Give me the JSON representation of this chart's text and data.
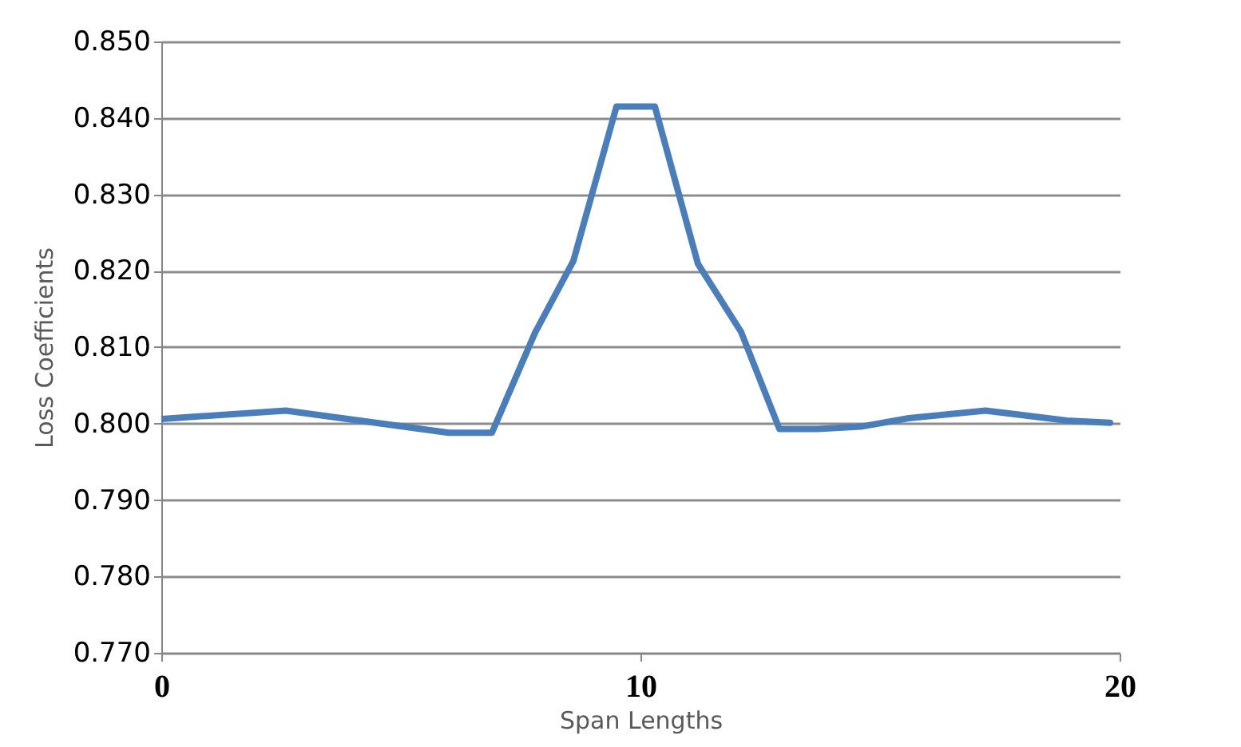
{
  "chart_data": {
    "type": "line",
    "xlabel": "Span Lengths",
    "ylabel": "Loss Coefficients",
    "x": [
      0,
      2.6,
      6.0,
      6.9,
      7.8,
      8.6,
      9.5,
      10.3,
      11.2,
      12.1,
      12.9,
      13.7,
      14.6,
      15.6,
      17.2,
      18.9,
      19.8
    ],
    "series": [
      {
        "color": "#4a7ebb",
        "values": [
          0.8006,
          0.8017,
          0.7988,
          0.7988,
          0.8119,
          0.8213,
          0.8415,
          0.8415,
          0.8209,
          0.812,
          0.7993,
          0.7993,
          0.7996,
          0.8007,
          0.8017,
          0.8004,
          0.8001
        ]
      }
    ],
    "xlim": [
      0,
      20
    ],
    "xticks": [
      0,
      10,
      20
    ],
    "ylim": [
      0.77,
      0.85
    ],
    "yticks": [
      {
        "value": 0.77,
        "label": "0.770"
      },
      {
        "value": 0.78,
        "label": "0.780"
      },
      {
        "value": 0.79,
        "label": "0.790"
      },
      {
        "value": 0.8,
        "label": "0.800"
      },
      {
        "value": 0.81,
        "label": "0.810"
      },
      {
        "value": 0.82,
        "label": "0.820"
      },
      {
        "value": 0.83,
        "label": "0.830"
      },
      {
        "value": 0.84,
        "label": "0.840"
      },
      {
        "value": 0.85,
        "label": "0.850"
      }
    ],
    "grid": "y",
    "marker": "none",
    "line_style": "solid"
  }
}
